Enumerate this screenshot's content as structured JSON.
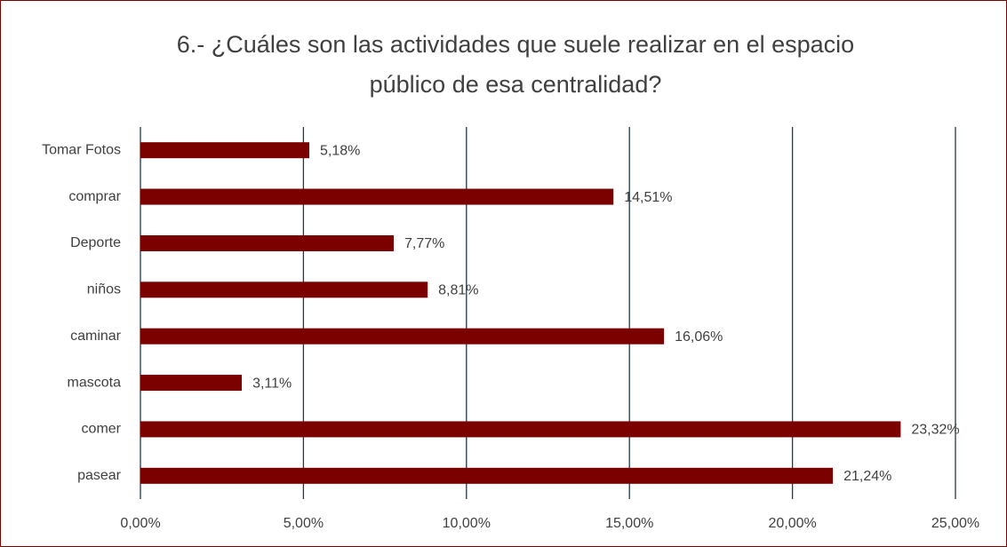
{
  "chart_data": {
    "type": "barh",
    "title": "6.- ¿Cuáles son las actividades que suele realizar en el espacio público de esa centralidad?",
    "categories": [
      "Tomar Fotos",
      "comprar ",
      "Deporte",
      "niños",
      "caminar",
      "mascota",
      "comer",
      "pasear"
    ],
    "values": [
      5.18,
      14.51,
      7.77,
      8.81,
      16.06,
      3.11,
      23.32,
      21.24
    ],
    "value_labels": [
      "5,18%",
      "14,51%",
      "7,77%",
      "8,81%",
      "16,06%",
      "3,11%",
      "23,32%",
      "21,24%"
    ],
    "color": "#7b0000",
    "xlim": [
      0,
      25
    ],
    "xticks": [
      {
        "value": 0,
        "label": "0,00%"
      },
      {
        "value": 5,
        "label": "5,00%"
      },
      {
        "value": 10,
        "label": "10,00%"
      },
      {
        "value": 15,
        "label": "15,00%"
      },
      {
        "value": 20,
        "label": "20,00%"
      },
      {
        "value": 25,
        "label": "25,00%"
      }
    ],
    "grid": true
  }
}
